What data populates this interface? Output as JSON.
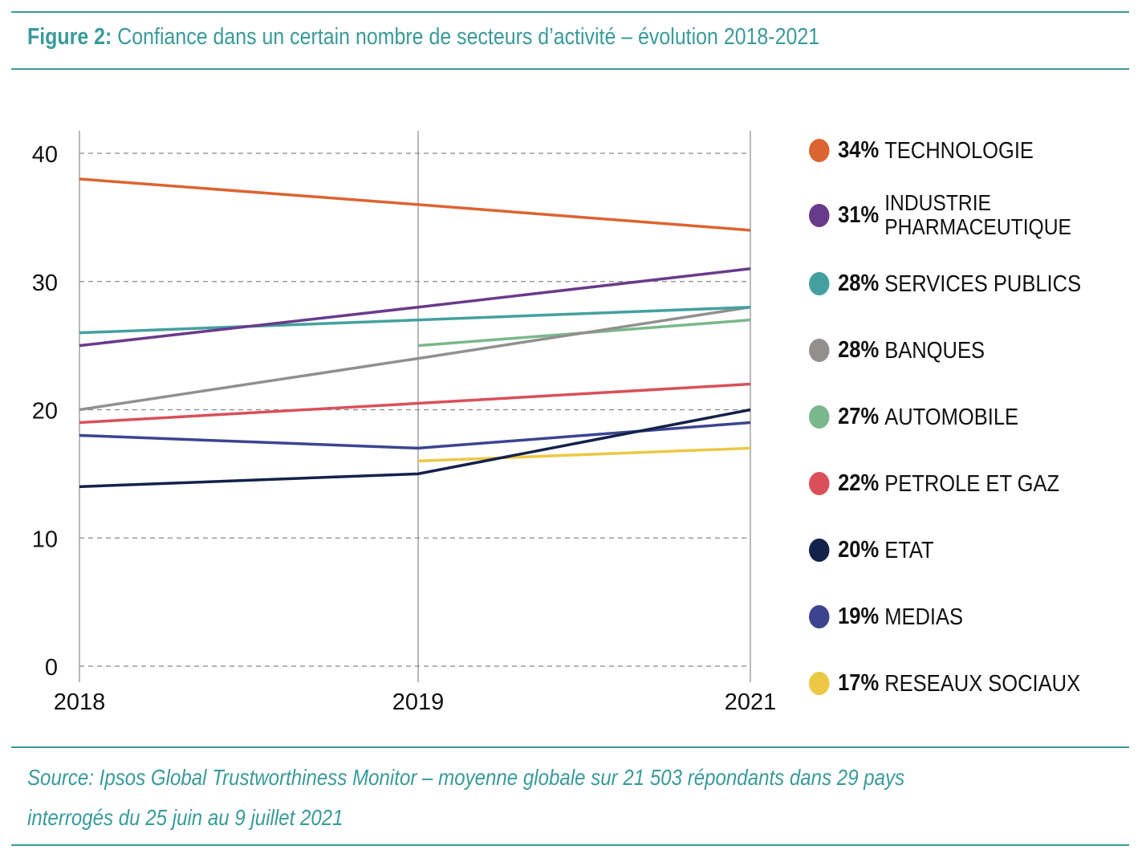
{
  "title": {
    "prefix": "Figure 2:",
    "text": "Confiance dans un certain nombre de secteurs d’activité – évolution 2018-2021"
  },
  "source": {
    "line1": "Source: Ipsos Global Trustworthiness Monitor – moyenne globale sur 21 503 répondants dans 29 pays",
    "line2": "interrogés du 25 juin au 9 juillet 2021"
  },
  "chart_data": {
    "type": "line",
    "categories": [
      "2018",
      "2019",
      "2021"
    ],
    "ylim": [
      0,
      40
    ],
    "yticks": [
      "0",
      "10",
      "20",
      "30",
      "40"
    ],
    "grid": "horizontal dashed, vertical solid at each year",
    "legend_position": "right",
    "series": [
      {
        "name": "TECHNOLOGIE",
        "label": "34%",
        "color": "#dc6430",
        "values": [
          38,
          36,
          34
        ]
      },
      {
        "name": "INDUSTRIE PHARMACEUTIQUE",
        "label": "31%",
        "color": "#6a3a8a",
        "values": [
          25,
          28,
          31
        ]
      },
      {
        "name": "SERVICES PUBLICS",
        "label": "28%",
        "color": "#44a0a0",
        "values": [
          26,
          27,
          28
        ]
      },
      {
        "name": "BANQUES",
        "label": "28%",
        "color": "#938f8f",
        "values": [
          20,
          24,
          28
        ]
      },
      {
        "name": "AUTOMOBILE",
        "label": "27%",
        "color": "#79b88a",
        "values": [
          null,
          25,
          27
        ]
      },
      {
        "name": "PETROLE ET GAZ",
        "label": "22%",
        "color": "#d9505a",
        "values": [
          19,
          20.5,
          22
        ]
      },
      {
        "name": "ETAT",
        "label": "20%",
        "color": "#13224a",
        "values": [
          14,
          15,
          20
        ]
      },
      {
        "name": "MEDIAS",
        "label": "19%",
        "color": "#3c4490",
        "values": [
          18,
          17,
          19
        ]
      },
      {
        "name": "RESEAUX SOCIAUX",
        "label": "17%",
        "color": "#ecc844",
        "values": [
          null,
          16,
          17
        ]
      }
    ]
  }
}
